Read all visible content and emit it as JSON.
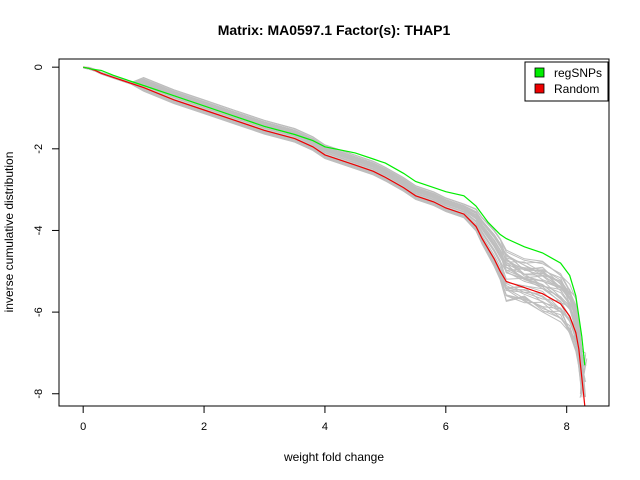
{
  "chart_data": {
    "type": "line",
    "title": "Matrix: MA0597.1 Factor(s): THAP1",
    "xlabel": "weight fold change",
    "ylabel": "inverse cumulative distribution",
    "xlim": [
      -0.4,
      8.7
    ],
    "ylim": [
      -8.3,
      0.2
    ],
    "x_ticks": [
      0,
      2,
      4,
      6,
      8
    ],
    "y_ticks": [
      0,
      -2,
      -4,
      -6,
      -8
    ],
    "legend_position": "top-right",
    "background_series_count": 40,
    "colors": {
      "regSNPs": "#00ee00",
      "Random": "#ee0000",
      "background": "#bebebe",
      "axis": "#000000"
    },
    "series": [
      {
        "name": "regSNPs",
        "x": [
          0,
          0.15,
          0.3,
          0.5,
          0.8,
          1.0,
          1.5,
          2.0,
          2.5,
          3.0,
          3.5,
          3.8,
          4.0,
          4.5,
          4.8,
          5.0,
          5.3,
          5.5,
          5.8,
          6.0,
          6.3,
          6.5,
          6.7,
          6.9,
          7.0,
          7.3,
          7.6,
          7.9,
          8.05,
          8.15,
          8.25,
          8.3
        ],
        "y": [
          0,
          -0.05,
          -0.08,
          -0.2,
          -0.35,
          -0.45,
          -0.7,
          -0.95,
          -1.2,
          -1.45,
          -1.65,
          -1.8,
          -1.95,
          -2.1,
          -2.25,
          -2.35,
          -2.6,
          -2.8,
          -2.95,
          -3.05,
          -3.15,
          -3.4,
          -3.8,
          -4.1,
          -4.2,
          -4.4,
          -4.55,
          -4.8,
          -5.1,
          -5.6,
          -6.6,
          -7.3
        ]
      },
      {
        "name": "Random",
        "x": [
          0,
          0.1,
          0.2,
          0.3,
          0.5,
          0.8,
          1.0,
          1.5,
          2.0,
          2.5,
          3.0,
          3.5,
          3.8,
          4.0,
          4.5,
          4.8,
          5.0,
          5.3,
          5.5,
          5.8,
          6.0,
          6.3,
          6.5,
          6.6,
          6.8,
          6.9,
          7.0,
          7.3,
          7.6,
          7.9,
          8.05,
          8.15,
          8.2,
          8.25,
          8.3
        ],
        "y": [
          0,
          -0.03,
          -0.08,
          -0.15,
          -0.25,
          -0.4,
          -0.5,
          -0.8,
          -1.05,
          -1.3,
          -1.55,
          -1.75,
          -1.95,
          -2.15,
          -2.4,
          -2.55,
          -2.7,
          -2.95,
          -3.15,
          -3.3,
          -3.45,
          -3.6,
          -3.9,
          -4.2,
          -4.7,
          -5.0,
          -5.25,
          -5.4,
          -5.55,
          -5.8,
          -6.1,
          -6.5,
          -6.9,
          -7.6,
          -8.3
        ]
      }
    ]
  }
}
